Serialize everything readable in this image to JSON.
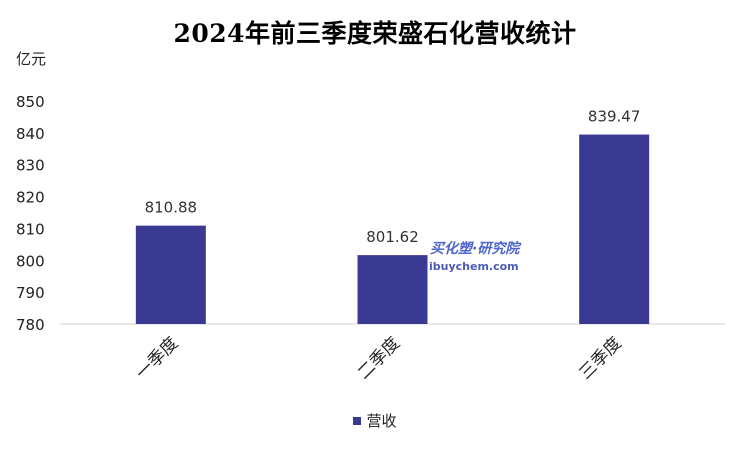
{
  "chart_data": {
    "type": "bar",
    "title": "2024年前三季度荣盛石化营收统计",
    "unit": "亿元",
    "categories": [
      "一季度",
      "二季度",
      "三季度"
    ],
    "series": [
      {
        "name": "营收",
        "values": [
          810.88,
          801.62,
          839.47
        ],
        "labels": [
          "810.88",
          "801.62",
          "839.47"
        ],
        "color": "#3b3a93"
      }
    ],
    "ylim": [
      780,
      850
    ],
    "yticks": [
      780,
      790,
      800,
      810,
      820,
      830,
      840,
      850
    ],
    "grid": false,
    "legend": "bottom",
    "x_tick_rotation": "-45deg"
  },
  "watermark": {
    "text": "买化塑·研究院",
    "url": "ibuychem.com"
  }
}
